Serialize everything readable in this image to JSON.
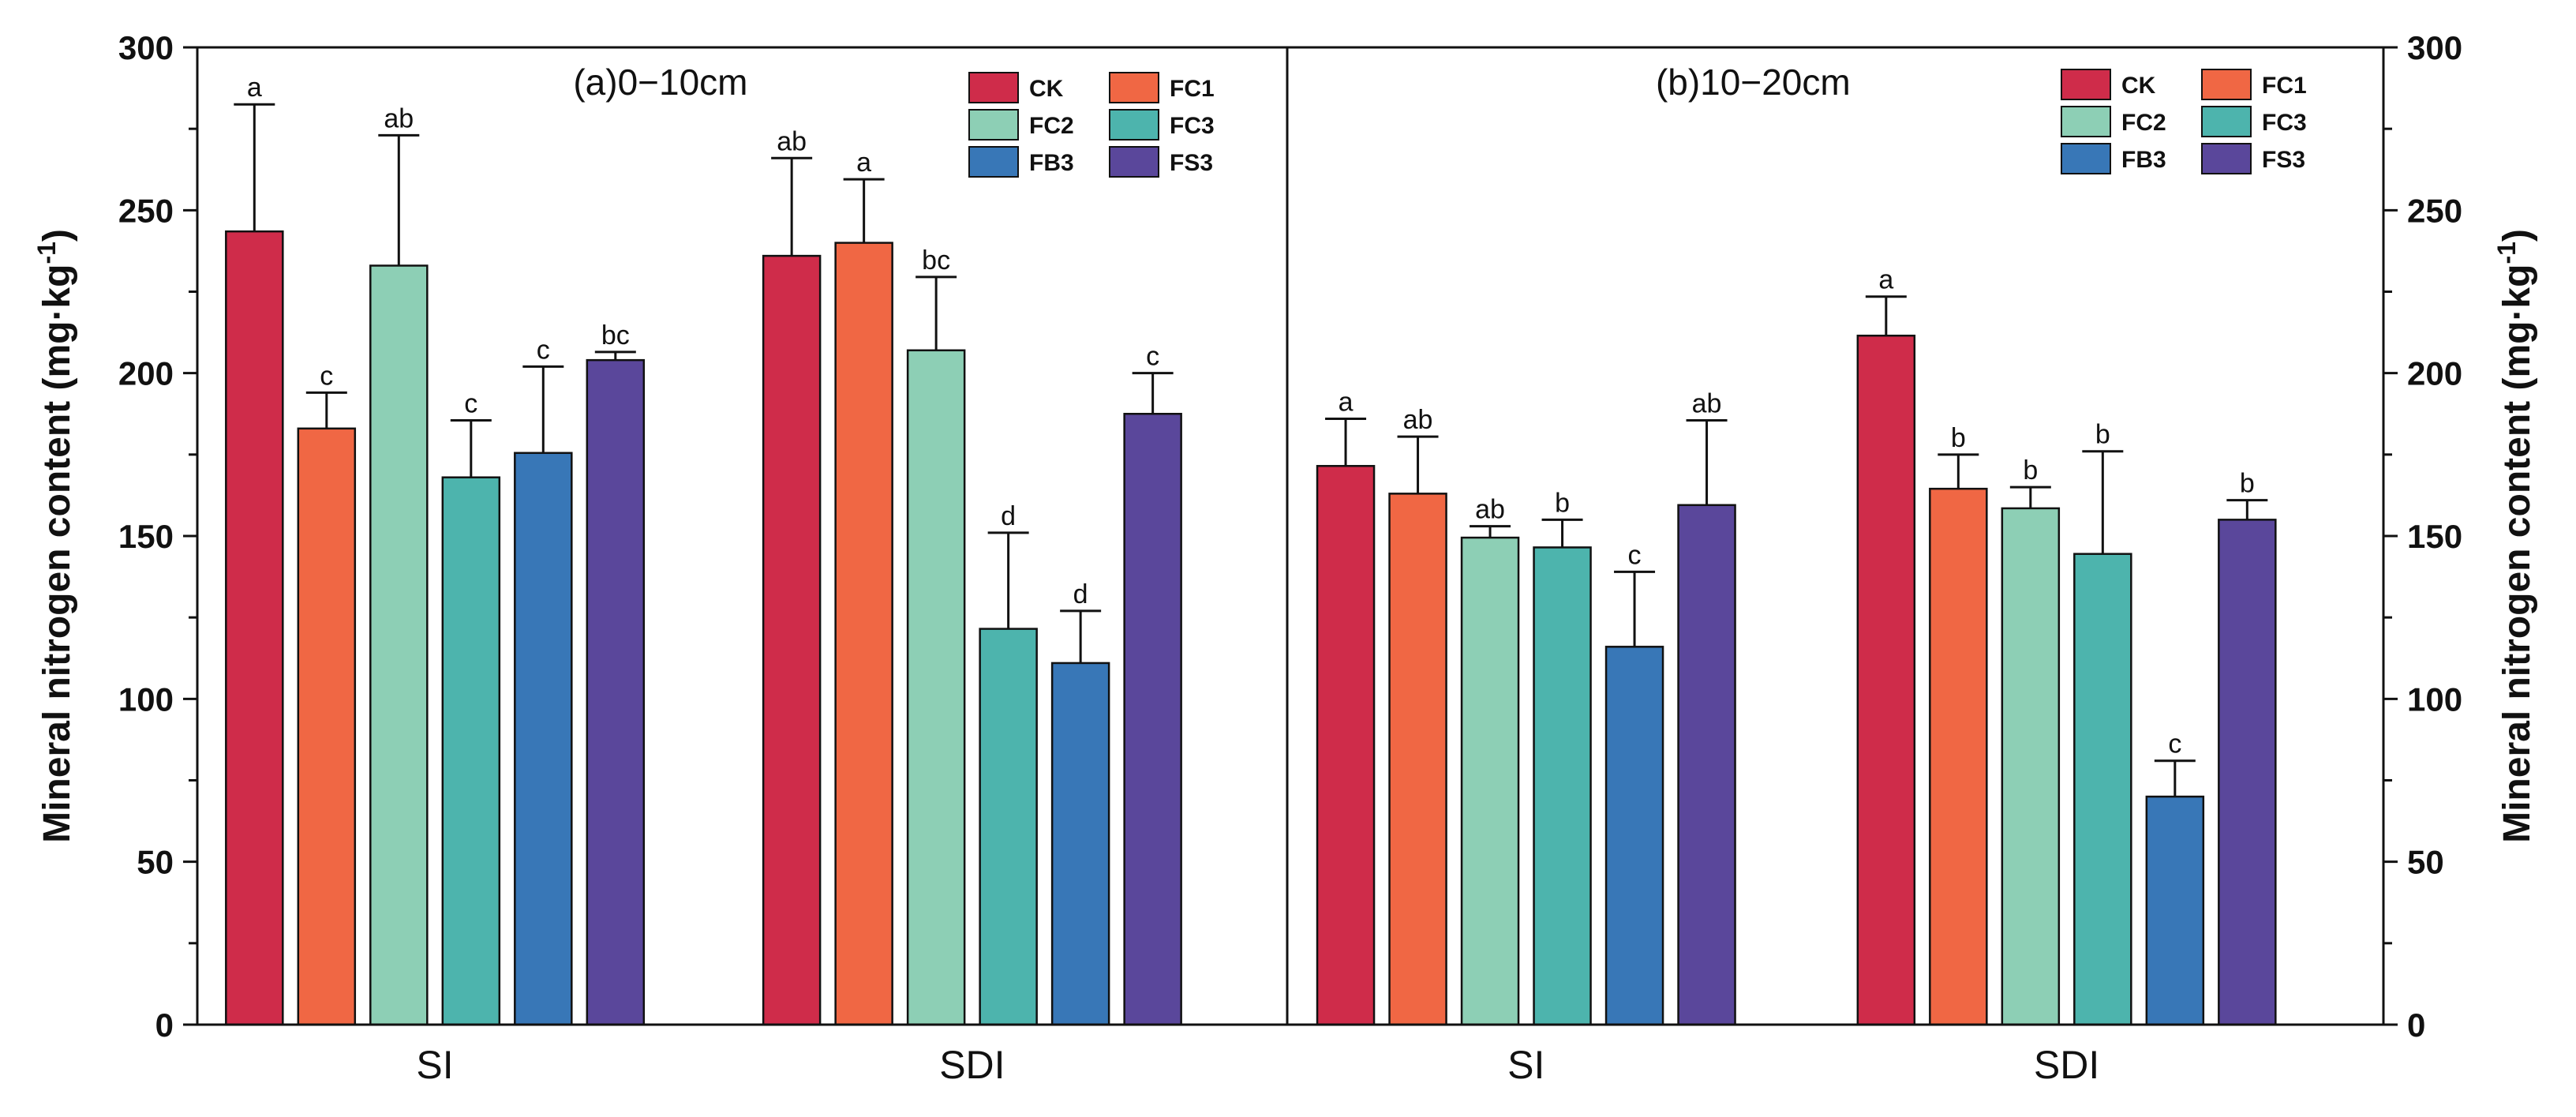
{
  "chart_data": {
    "type": "bar",
    "ylabel": "Mineral nitrogen content (mg·kg",
    "ylabel_sup": "-1",
    "ylabel_close": ")",
    "ylim": [
      0,
      300
    ],
    "yticks": [
      0,
      50,
      100,
      150,
      200,
      250,
      300
    ],
    "minor_ticks": true,
    "grid": false,
    "series_names": [
      "CK",
      "FC1",
      "FC2",
      "FC3",
      "FB3",
      "FS3"
    ],
    "colors": {
      "CK": "#cf2c4a",
      "FC1": "#f06744",
      "FC2": "#8dcfb5",
      "FC3": "#4db4ad",
      "FB3": "#3877b7",
      "FS3": "#5a479b"
    },
    "legend_position": "top-right",
    "panels": [
      {
        "title": "(a)0−10cm",
        "categories": [
          "SI",
          "SDI"
        ],
        "groups": [
          {
            "category": "SI",
            "values": [
              243.5,
              183.0,
              233.0,
              168.0,
              175.5,
              204.0
            ],
            "errors": [
              39.0,
              11.0,
              40.0,
              17.5,
              26.5,
              2.5
            ],
            "labels": [
              "a",
              "c",
              "ab",
              "c",
              "c",
              "bc"
            ]
          },
          {
            "category": "SDI",
            "values": [
              236.0,
              240.0,
              207.0,
              121.5,
              111.0,
              187.5
            ],
            "errors": [
              30.0,
              19.5,
              22.5,
              29.5,
              16.0,
              12.5
            ],
            "labels": [
              "ab",
              "a",
              "bc",
              "d",
              "d",
              "c"
            ]
          }
        ]
      },
      {
        "title": "(b)10−20cm",
        "categories": [
          "SI",
          "SDI"
        ],
        "groups": [
          {
            "category": "SI",
            "values": [
              171.5,
              163.0,
              149.5,
              146.5,
              116.0,
              159.5
            ],
            "errors": [
              14.5,
              17.5,
              3.5,
              8.5,
              23.0,
              26.0
            ],
            "labels": [
              "a",
              "ab",
              "ab",
              "b",
              "c",
              "ab"
            ]
          },
          {
            "category": "SDI",
            "values": [
              211.5,
              164.5,
              158.5,
              144.5,
              70.0,
              155.0
            ],
            "errors": [
              12.0,
              10.5,
              6.5,
              31.5,
              11.0,
              6.0
            ],
            "labels": [
              "a",
              "b",
              "b",
              "b",
              "c",
              "b"
            ]
          }
        ]
      }
    ]
  }
}
